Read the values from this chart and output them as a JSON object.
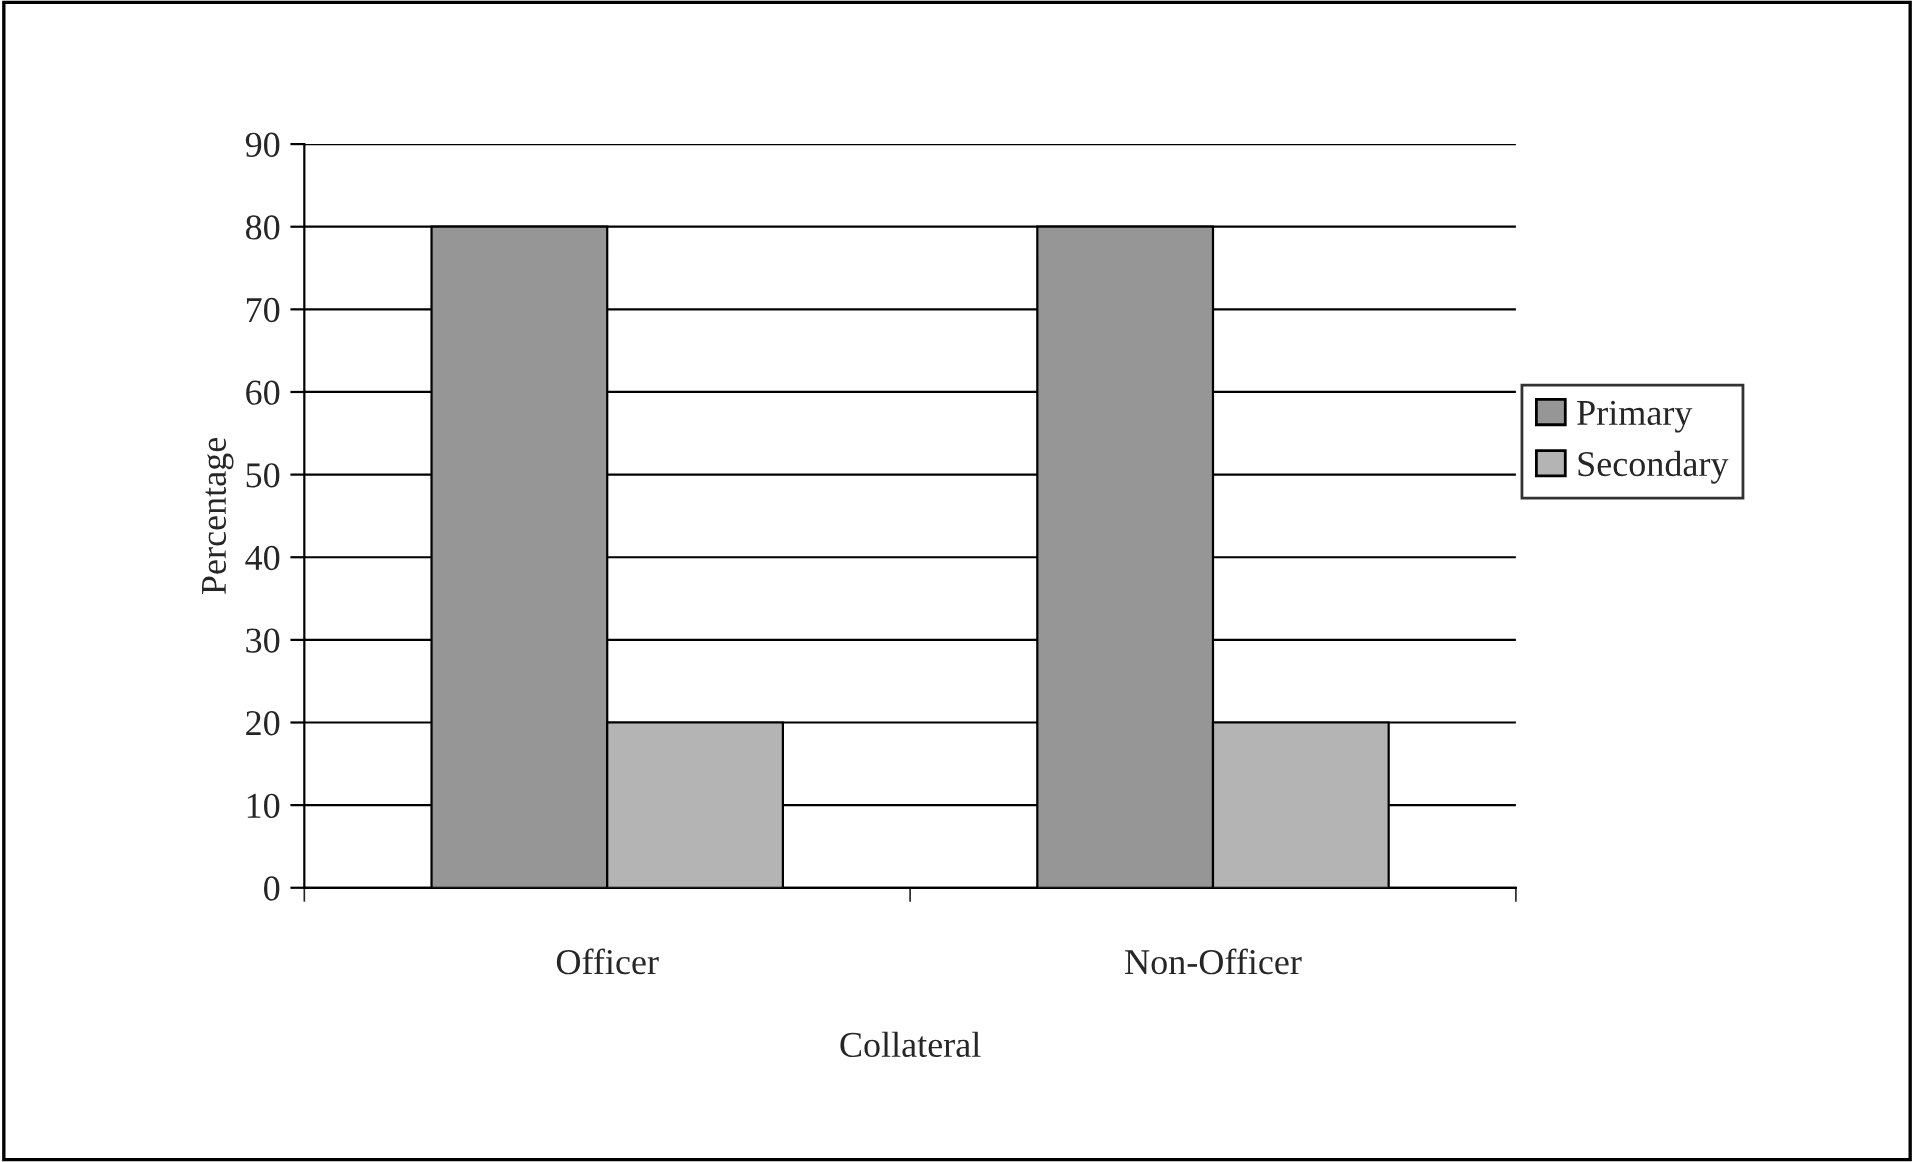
{
  "chart_data": {
    "type": "bar",
    "xlabel": "Collateral",
    "ylabel": "Percentage",
    "categories": [
      "Officer",
      "Non-Officer"
    ],
    "series": [
      {
        "name": "Primary",
        "color": "#969696",
        "values": [
          80,
          80
        ]
      },
      {
        "name": "Secondary",
        "color": "#b4b4b4",
        "values": [
          20,
          20
        ]
      }
    ],
    "ylim": [
      0,
      90
    ],
    "yticks": [
      0,
      10,
      20,
      30,
      40,
      50,
      60,
      70,
      80,
      90
    ],
    "grid": "y",
    "legend": "right"
  }
}
